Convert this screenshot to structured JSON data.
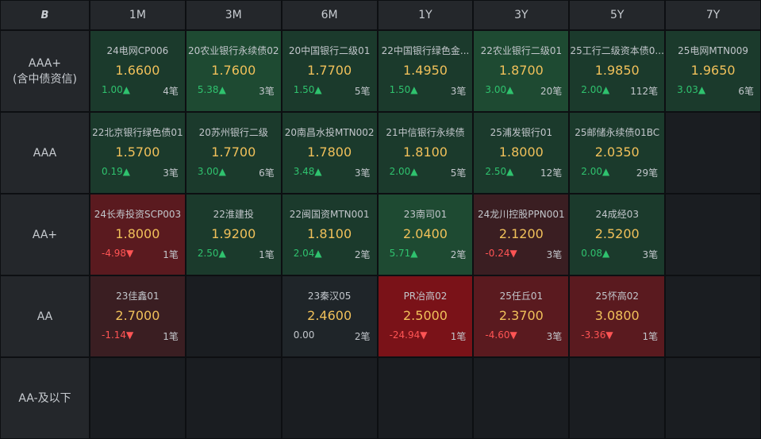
{
  "corner_logo": "B",
  "tenors": [
    "1M",
    "3M",
    "6M",
    "1Y",
    "3Y",
    "5Y",
    "7Y"
  ],
  "ratings": [
    {
      "line1": "AAA+",
      "line2": "(含中债资信)"
    },
    {
      "line1": "AAA",
      "line2": ""
    },
    {
      "line1": "AA+",
      "line2": ""
    },
    {
      "line1": "AA",
      "line2": ""
    },
    {
      "line1": "AA-及以下",
      "line2": ""
    }
  ],
  "cells": [
    [
      {
        "name": "24电网CP006",
        "yield": "1.6600",
        "chg": "1.00▲",
        "dir": "up",
        "count": "4笔",
        "tone": "green1"
      },
      {
        "name": "20农业银行永续债02",
        "yield": "1.7600",
        "chg": "5.38▲",
        "dir": "up",
        "count": "3笔",
        "tone": "green2"
      },
      {
        "name": "20中国银行二级01",
        "yield": "1.7700",
        "chg": "1.50▲",
        "dir": "up",
        "count": "5笔",
        "tone": "green1"
      },
      {
        "name": "22中国银行绿色金...",
        "yield": "1.4950",
        "chg": "1.50▲",
        "dir": "up",
        "count": "3笔",
        "tone": "green1"
      },
      {
        "name": "22农业银行二级01",
        "yield": "1.8700",
        "chg": "3.00▲",
        "dir": "up",
        "count": "20笔",
        "tone": "green2"
      },
      {
        "name": "25工行二级资本债0...",
        "yield": "1.9850",
        "chg": "2.00▲",
        "dir": "up",
        "count": "112笔",
        "tone": "green1"
      },
      {
        "name": "25电网MTN009",
        "yield": "1.9650",
        "chg": "3.03▲",
        "dir": "up",
        "count": "6笔",
        "tone": "green1"
      }
    ],
    [
      {
        "name": "22北京银行绿色债01",
        "yield": "1.5700",
        "chg": "0.19▲",
        "dir": "up",
        "count": "3笔",
        "tone": "green1"
      },
      {
        "name": "20苏州银行二级",
        "yield": "1.7700",
        "chg": "3.00▲",
        "dir": "up",
        "count": "6笔",
        "tone": "green1"
      },
      {
        "name": "20南昌水投MTN002",
        "yield": "1.7800",
        "chg": "3.48▲",
        "dir": "up",
        "count": "3笔",
        "tone": "green1"
      },
      {
        "name": "21中信银行永续债",
        "yield": "1.8100",
        "chg": "2.00▲",
        "dir": "up",
        "count": "5笔",
        "tone": "green1"
      },
      {
        "name": "25浦发银行01",
        "yield": "1.8000",
        "chg": "2.50▲",
        "dir": "up",
        "count": "12笔",
        "tone": "green1"
      },
      {
        "name": "25邮储永续债01BC",
        "yield": "2.0350",
        "chg": "2.00▲",
        "dir": "up",
        "count": "29笔",
        "tone": "green1"
      },
      null
    ],
    [
      {
        "name": "24长寿投资SCP003",
        "yield": "1.8000",
        "chg": "-4.98▼",
        "dir": "down",
        "count": "1笔",
        "tone": "red2"
      },
      {
        "name": "22淮建投",
        "yield": "1.9200",
        "chg": "2.50▲",
        "dir": "up",
        "count": "1笔",
        "tone": "green1"
      },
      {
        "name": "22闽国资MTN001",
        "yield": "1.8100",
        "chg": "2.04▲",
        "dir": "up",
        "count": "2笔",
        "tone": "green1"
      },
      {
        "name": "23南司01",
        "yield": "2.0400",
        "chg": "5.71▲",
        "dir": "up",
        "count": "2笔",
        "tone": "green2"
      },
      {
        "name": "24龙川控股PPN001",
        "yield": "2.1200",
        "chg": "-0.24▼",
        "dir": "down",
        "count": "3笔",
        "tone": "red1"
      },
      {
        "name": "24成经03",
        "yield": "2.5200",
        "chg": "0.08▲",
        "dir": "up",
        "count": "3笔",
        "tone": "green1"
      },
      null
    ],
    [
      {
        "name": "23佳鑫01",
        "yield": "2.7000",
        "chg": "-1.14▼",
        "dir": "down",
        "count": "1笔",
        "tone": "red1"
      },
      null,
      {
        "name": "23秦汉05",
        "yield": "2.4600",
        "chg": "0.00",
        "dir": "flat",
        "count": "2笔",
        "tone": "neutral"
      },
      {
        "name": "PR冶高02",
        "yield": "2.5000",
        "chg": "-24.94▼",
        "dir": "down",
        "count": "1笔",
        "tone": "red3"
      },
      {
        "name": "25任丘01",
        "yield": "2.3700",
        "chg": "-4.60▼",
        "dir": "down",
        "count": "3笔",
        "tone": "red2"
      },
      {
        "name": "25怀高02",
        "yield": "3.0800",
        "chg": "-3.36▼",
        "dir": "down",
        "count": "1笔",
        "tone": "red2"
      },
      null
    ],
    [
      null,
      null,
      null,
      null,
      null,
      null,
      null
    ]
  ]
}
